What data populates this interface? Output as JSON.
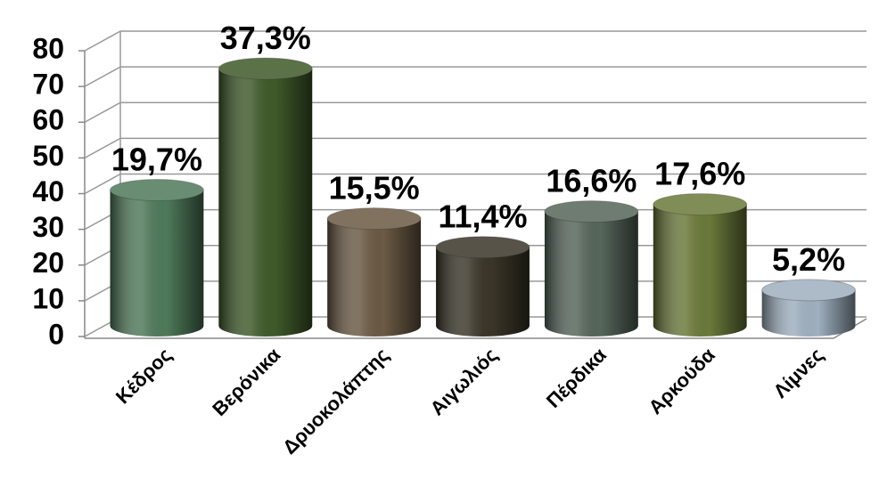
{
  "chart_data": {
    "type": "cylinder-bar",
    "categories": [
      "Κέδρος",
      "Βερόνικα",
      "Δρυοκολάπτης",
      "Αιγωλιός",
      "Πέρδικα",
      "Αρκούδα",
      "Λίμνες"
    ],
    "values": [
      38,
      72,
      30,
      22,
      32,
      34,
      10
    ],
    "value_labels": [
      "19,7%",
      "37,3%",
      "15,5%",
      "11,4%",
      "16,6%",
      "17,6%",
      "5,2%"
    ],
    "colors": [
      "#4f7a5a",
      "#3f5a2a",
      "#6b5a44",
      "#3a3528",
      "#56665a",
      "#6a7a3a",
      "#9fb0c0"
    ],
    "ylim": [
      0,
      80
    ],
    "yticks": [
      0,
      10,
      20,
      30,
      40,
      50,
      60,
      70,
      80
    ],
    "grid": true
  }
}
